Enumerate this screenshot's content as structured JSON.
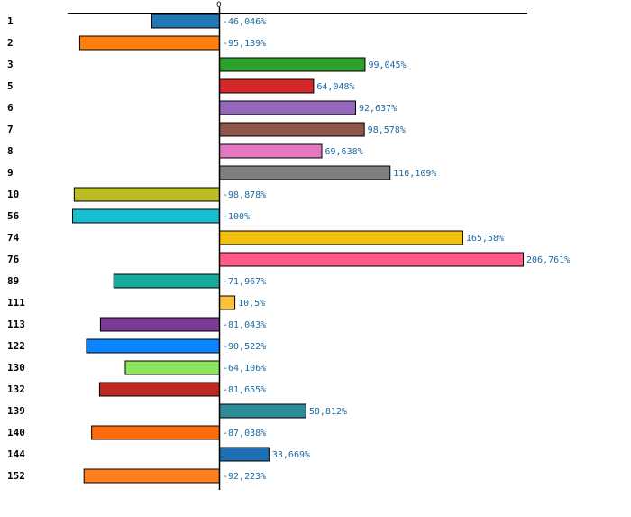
{
  "chart_data": {
    "type": "bar",
    "orientation": "horizontal",
    "zero_tick_label": "0",
    "categories": [
      "1",
      "2",
      "3",
      "5",
      "6",
      "7",
      "8",
      "9",
      "10",
      "56",
      "74",
      "76",
      "89",
      "111",
      "113",
      "122",
      "130",
      "132",
      "139",
      "140",
      "144",
      "152"
    ],
    "values": [
      -46.046,
      -95.139,
      99.045,
      64.048,
      92.637,
      98.578,
      69.638,
      116.109,
      -98.878,
      -100,
      165.58,
      206.761,
      -71.967,
      10.5,
      -81.043,
      -90.522,
      -64.106,
      -81.655,
      58.812,
      -87.038,
      33.669,
      -92.223
    ],
    "value_labels": [
      "-46,046%",
      "-95,139%",
      "99,045%",
      "64,048%",
      "92,637%",
      "98,578%",
      "69,638%",
      "116,109%",
      "-98,878%",
      "-100%",
      "165,58%",
      "206,761%",
      "-71,967%",
      "10,5%",
      "-81,043%",
      "-90,522%",
      "-64,106%",
      "-81,655%",
      "58,812%",
      "-87,038%",
      "33,669%",
      "-92,223%"
    ],
    "colors": [
      "#1f77b4",
      "#ff7f0e",
      "#2ca02c",
      "#d62728",
      "#9467bd",
      "#8c564b",
      "#e377c2",
      "#7f7f7f",
      "#bcbd22",
      "#17becf",
      "#f2c10f",
      "#ff5a8a",
      "#17a89e",
      "#ffc13a",
      "#7a3b96",
      "#0a84ff",
      "#8ae65c",
      "#bf2a1f",
      "#2e8b9a",
      "#ff6a0a",
      "#1f6fb4",
      "#ff7f1e"
    ],
    "label_color": "#1a6aa3",
    "xlim": [
      -100,
      206.761
    ]
  }
}
